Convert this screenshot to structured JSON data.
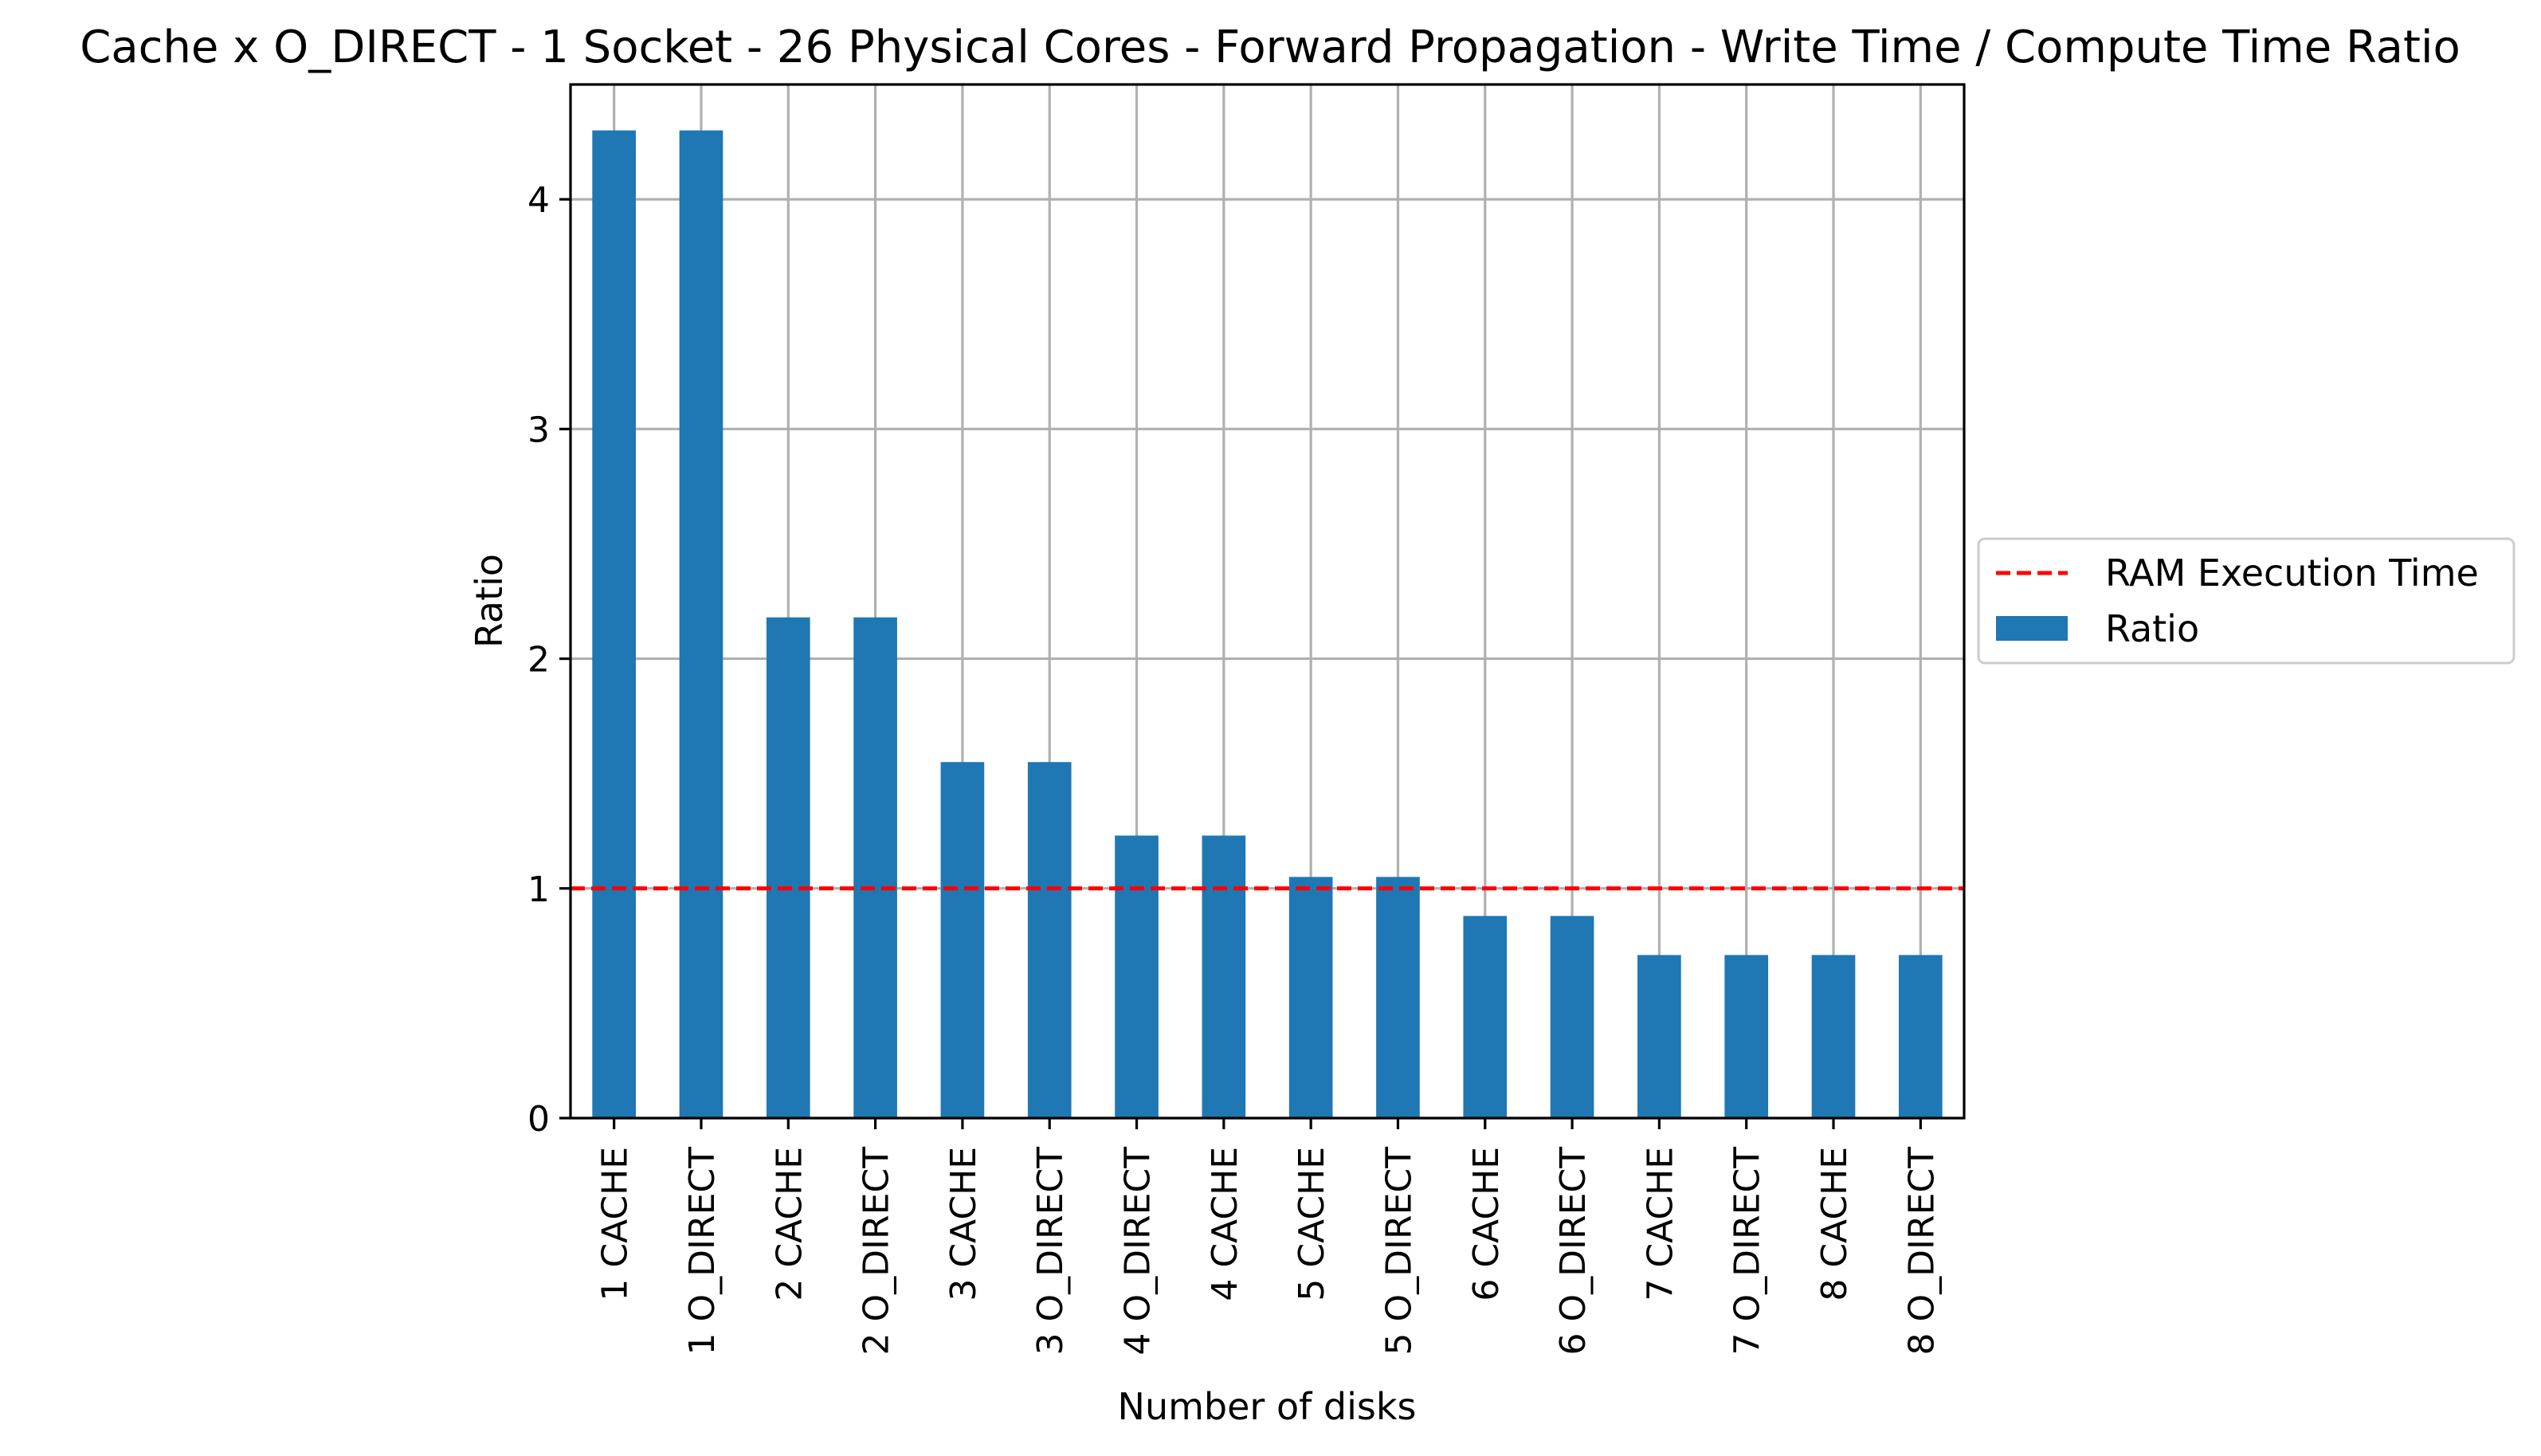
{
  "chart_data": {
    "type": "bar",
    "title": "Cache x O_DIRECT - 1 Socket - 26 Physical Cores - Forward Propagation - Write Time / Compute Time Ratio",
    "xlabel": "Number of disks",
    "ylabel": "Ratio",
    "ylim": [
      0,
      4.5
    ],
    "yticks": [
      0,
      1,
      2,
      3,
      4
    ],
    "grid": true,
    "legend_position": "center-right outside",
    "categories": [
      "1 CACHE",
      "1 O_DIRECT",
      "2 CACHE",
      "2 O_DIRECT",
      "3 CACHE",
      "3 O_DIRECT",
      "4 O_DIRECT",
      "4 CACHE",
      "5 CACHE",
      "5 O_DIRECT",
      "6 CACHE",
      "6 O_DIRECT",
      "7 CACHE",
      "7 O_DIRECT",
      "8 CACHE",
      "8 O_DIRECT"
    ],
    "series": [
      {
        "name": "Ratio",
        "color": "#1f77b4",
        "values": [
          4.3,
          4.3,
          2.18,
          2.18,
          1.55,
          1.55,
          1.23,
          1.23,
          1.05,
          1.05,
          0.88,
          0.88,
          0.71,
          0.71,
          0.71,
          0.71
        ]
      }
    ],
    "reference_line": {
      "name": "RAM Execution Time",
      "value": 1.0,
      "color": "#ff0000",
      "style": "dashed"
    }
  }
}
